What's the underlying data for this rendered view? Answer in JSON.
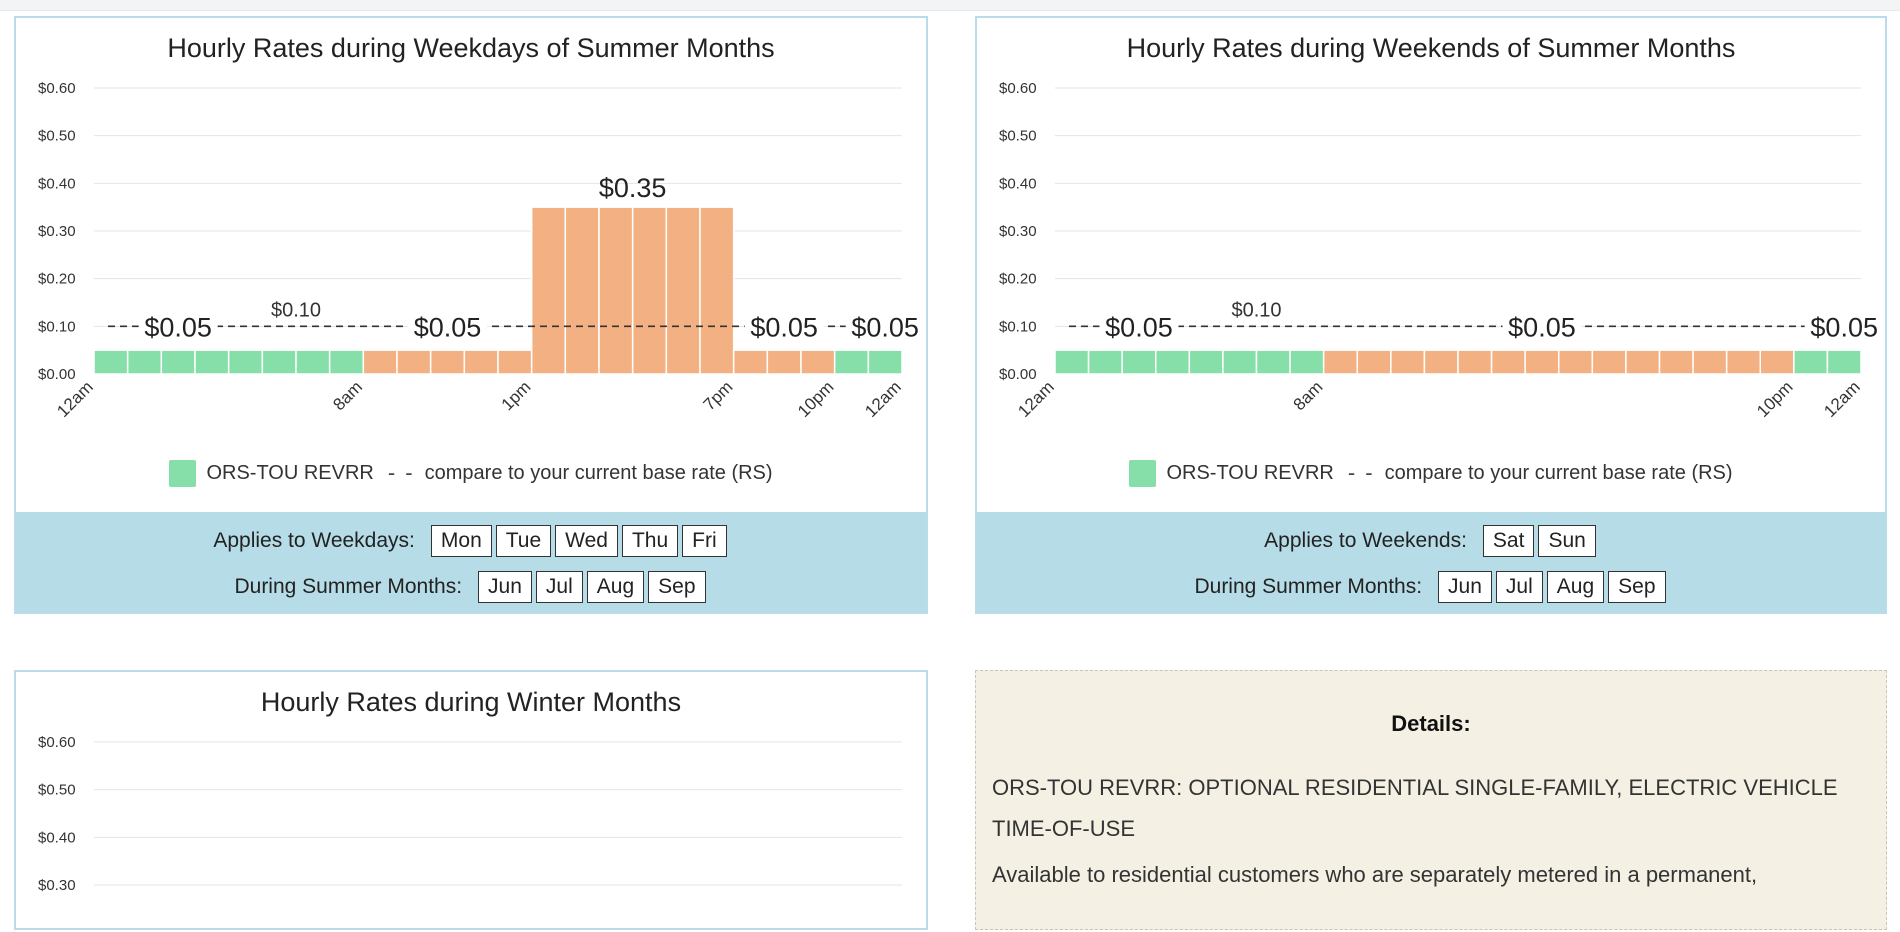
{
  "colors": {
    "offpeak": "#86dfa9",
    "onpeak": "#f3b083",
    "panel": "#b6dce7",
    "border": "#b8dde8"
  },
  "legend": {
    "series_label": "ORS-TOU REVRR",
    "compare_label": "compare to your current base rate (RS)",
    "dash_glyph": "- -"
  },
  "weekdays": {
    "applies_label": "Applies to Weekdays:",
    "applies_chips": [
      "Mon",
      "Tue",
      "Wed",
      "Thu",
      "Fri"
    ],
    "months_label": "During Summer Months:",
    "month_chips": [
      "Jun",
      "Jul",
      "Aug",
      "Sep"
    ]
  },
  "weekends": {
    "applies_label": "Applies to Weekends:",
    "applies_chips": [
      "Sat",
      "Sun"
    ],
    "months_label": "During Summer Months:",
    "month_chips": [
      "Jun",
      "Jul",
      "Aug",
      "Sep"
    ]
  },
  "details": {
    "title": "Details:",
    "name": "ORS-TOU REVRR: OPTIONAL RESIDENTIAL SINGLE-FAMILY, ELECTRIC VEHICLE TIME-OF-USE",
    "body": "Available to residential customers who are separately metered in a permanent,"
  },
  "chart_data": [
    {
      "type": "bar",
      "title": "Hourly Rates during Weekdays of Summer Months",
      "x": [
        "12am",
        "1am",
        "2am",
        "3am",
        "4am",
        "5am",
        "6am",
        "7am",
        "8am",
        "9am",
        "10am",
        "11am",
        "12pm",
        "1pm",
        "2pm",
        "3pm",
        "4pm",
        "5pm",
        "6pm",
        "7pm",
        "8pm",
        "9pm",
        "10pm",
        "11pm"
      ],
      "series": [
        {
          "name": "ORS-TOU REVRR",
          "values": [
            0.05,
            0.05,
            0.05,
            0.05,
            0.05,
            0.05,
            0.05,
            0.05,
            0.05,
            0.05,
            0.05,
            0.05,
            0.05,
            0.35,
            0.35,
            0.35,
            0.35,
            0.35,
            0.35,
            0.05,
            0.05,
            0.05,
            0.05,
            0.05
          ],
          "tier": [
            "off",
            "off",
            "off",
            "off",
            "off",
            "off",
            "off",
            "off",
            "on",
            "on",
            "on",
            "on",
            "on",
            "on",
            "on",
            "on",
            "on",
            "on",
            "on",
            "on",
            "on",
            "on",
            "off",
            "off"
          ]
        }
      ],
      "baseline": {
        "name": "compare to your current base rate (RS)",
        "value": 0.1,
        "label": "$0.10",
        "label_hour": 6
      },
      "segment_labels": [
        {
          "text": "$0.05",
          "hour": 2.5,
          "value": 0.05
        },
        {
          "text": "$0.05",
          "hour": 10.5,
          "value": 0.05
        },
        {
          "text": "$0.35",
          "hour": 16,
          "value": 0.35
        },
        {
          "text": "$0.05",
          "hour": 20.5,
          "value": 0.05
        },
        {
          "text": "$0.05",
          "hour": 23.5,
          "value": 0.05
        }
      ],
      "tick_labels": [
        {
          "text": "12am",
          "hour": 0
        },
        {
          "text": "8am",
          "hour": 8
        },
        {
          "text": "1pm",
          "hour": 13
        },
        {
          "text": "7pm",
          "hour": 19
        },
        {
          "text": "10pm",
          "hour": 22
        },
        {
          "text": "12am",
          "hour": 24
        }
      ],
      "y_ticks": [
        "$0.00",
        "$0.10",
        "$0.20",
        "$0.30",
        "$0.40",
        "$0.50",
        "$0.60"
      ],
      "ylim": [
        0,
        0.6
      ],
      "grid": true,
      "legend_position": "bottom"
    },
    {
      "type": "bar",
      "title": "Hourly Rates during Weekends of Summer Months",
      "x": [
        "12am",
        "1am",
        "2am",
        "3am",
        "4am",
        "5am",
        "6am",
        "7am",
        "8am",
        "9am",
        "10am",
        "11am",
        "12pm",
        "1pm",
        "2pm",
        "3pm",
        "4pm",
        "5pm",
        "6pm",
        "7pm",
        "8pm",
        "9pm",
        "10pm",
        "11pm"
      ],
      "series": [
        {
          "name": "ORS-TOU REVRR",
          "values": [
            0.05,
            0.05,
            0.05,
            0.05,
            0.05,
            0.05,
            0.05,
            0.05,
            0.05,
            0.05,
            0.05,
            0.05,
            0.05,
            0.05,
            0.05,
            0.05,
            0.05,
            0.05,
            0.05,
            0.05,
            0.05,
            0.05,
            0.05,
            0.05
          ],
          "tier": [
            "off",
            "off",
            "off",
            "off",
            "off",
            "off",
            "off",
            "off",
            "on",
            "on",
            "on",
            "on",
            "on",
            "on",
            "on",
            "on",
            "on",
            "on",
            "on",
            "on",
            "on",
            "on",
            "off",
            "off"
          ]
        }
      ],
      "baseline": {
        "name": "compare to your current base rate (RS)",
        "value": 0.1,
        "label": "$0.10",
        "label_hour": 6
      },
      "segment_labels": [
        {
          "text": "$0.05",
          "hour": 2.5,
          "value": 0.05
        },
        {
          "text": "$0.05",
          "hour": 14.5,
          "value": 0.05
        },
        {
          "text": "$0.05",
          "hour": 23.5,
          "value": 0.05
        }
      ],
      "tick_labels": [
        {
          "text": "12am",
          "hour": 0
        },
        {
          "text": "8am",
          "hour": 8
        },
        {
          "text": "10pm",
          "hour": 22
        },
        {
          "text": "12am",
          "hour": 24
        }
      ],
      "y_ticks": [
        "$0.00",
        "$0.10",
        "$0.20",
        "$0.30",
        "$0.40",
        "$0.50",
        "$0.60"
      ],
      "ylim": [
        0,
        0.6
      ],
      "grid": true,
      "legend_position": "bottom"
    },
    {
      "type": "bar",
      "title": "Hourly Rates during Winter Months",
      "x": [],
      "series": [],
      "y_ticks": [
        "$0.60",
        "$0.50",
        "$0.40",
        "$0.30"
      ],
      "ylim": [
        0,
        0.6
      ],
      "grid": true
    }
  ]
}
